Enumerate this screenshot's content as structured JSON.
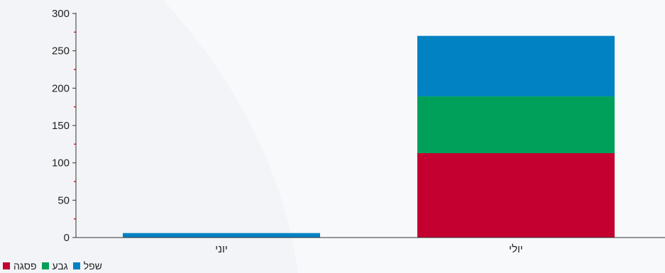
{
  "chart_data": {
    "type": "bar",
    "stacked": true,
    "categories": [
      "יוני",
      "יולי"
    ],
    "series": [
      {
        "name": "פסגה",
        "color": "#c3002f",
        "values": [
          0,
          113
        ]
      },
      {
        "name": "גבע",
        "color": "#00a05a",
        "values": [
          0,
          76
        ]
      },
      {
        "name": "שפל",
        "color": "#0082c3",
        "values": [
          6,
          81
        ]
      }
    ],
    "ylim": [
      0,
      300
    ],
    "yticks": [
      0,
      50,
      100,
      150,
      200,
      250,
      300
    ],
    "legend_position": "bottom-left",
    "legend_order": [
      "פסגה",
      "גבע",
      "שפל"
    ]
  }
}
